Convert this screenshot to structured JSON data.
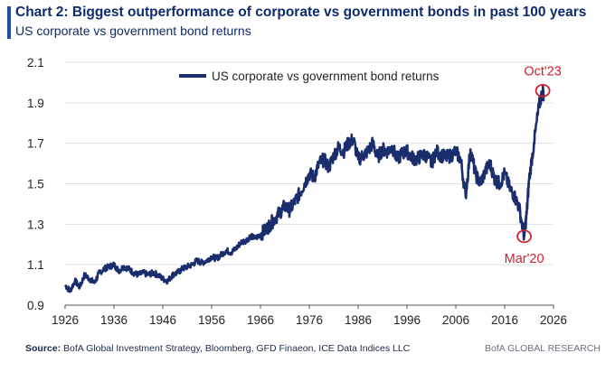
{
  "header": {
    "title": "Chart 2: Biggest outperformance of corporate vs government bonds in past 100 years",
    "subtitle": "US corporate vs government bond returns"
  },
  "footer": {
    "source_label": "Source:",
    "source_text": "BofA Global Investment Strategy, Bloomberg, GFD Finaeon, ICE Data Indices LLC",
    "brand": "BofA GLOBAL RESEARCH"
  },
  "colors": {
    "series": "#1a2e6e",
    "annotation": "#d0202e",
    "grid": "#dde0e6",
    "accent": "#1f4ea3"
  },
  "chart_data": {
    "type": "line",
    "title": "Chart 2: Biggest outperformance of corporate vs government bonds in past 100 years",
    "subtitle": "US corporate vs government bond returns",
    "xlabel": "",
    "ylabel": "",
    "xlim": [
      1926,
      2026
    ],
    "ylim": [
      0.9,
      2.1
    ],
    "x_ticks": [
      1926,
      1936,
      1946,
      1956,
      1966,
      1976,
      1986,
      1996,
      2006,
      2016,
      2026
    ],
    "y_ticks": [
      0.9,
      1.1,
      1.3,
      1.5,
      1.7,
      1.9,
      2.1
    ],
    "y_tick_labels": [
      "0.9",
      "1.1",
      "1.3",
      "1.5",
      "1.7",
      "1.9",
      "2.1"
    ],
    "grid": true,
    "legend": {
      "position": "top-center",
      "entries": [
        "US corporate vs government bond returns"
      ]
    },
    "series": [
      {
        "name": "US corporate vs government bond returns",
        "x": [
          1926,
          1927,
          1928,
          1929,
          1930,
          1931,
          1932,
          1933,
          1934,
          1935,
          1936,
          1937,
          1938,
          1939,
          1940,
          1941,
          1942,
          1943,
          1944,
          1945,
          1946,
          1947,
          1948,
          1949,
          1950,
          1951,
          1952,
          1953,
          1954,
          1955,
          1956,
          1957,
          1958,
          1959,
          1960,
          1961,
          1962,
          1963,
          1964,
          1965,
          1966,
          1967,
          1968,
          1969,
          1970,
          1971,
          1972,
          1973,
          1974,
          1975,
          1976,
          1977,
          1978,
          1979,
          1980,
          1981,
          1982,
          1983,
          1984,
          1985,
          1986,
          1987,
          1988,
          1989,
          1990,
          1991,
          1992,
          1993,
          1994,
          1995,
          1996,
          1997,
          1998,
          1999,
          2000,
          2001,
          2002,
          2003,
          2004,
          2005,
          2006,
          2007,
          2008,
          2009,
          2010,
          2011,
          2012,
          2013,
          2014,
          2015,
          2016,
          2017,
          2018,
          2019,
          2020,
          2020.5,
          2021,
          2022,
          2023,
          2023.8,
          2024
        ],
        "y": [
          1.0,
          0.97,
          1.02,
          0.99,
          1.05,
          1.03,
          1.01,
          1.06,
          1.08,
          1.09,
          1.1,
          1.07,
          1.09,
          1.08,
          1.06,
          1.05,
          1.06,
          1.05,
          1.06,
          1.05,
          1.03,
          1.02,
          1.05,
          1.06,
          1.08,
          1.09,
          1.1,
          1.12,
          1.11,
          1.12,
          1.14,
          1.13,
          1.15,
          1.17,
          1.16,
          1.18,
          1.21,
          1.22,
          1.24,
          1.23,
          1.25,
          1.27,
          1.3,
          1.33,
          1.36,
          1.39,
          1.37,
          1.41,
          1.45,
          1.5,
          1.55,
          1.53,
          1.6,
          1.62,
          1.58,
          1.64,
          1.68,
          1.66,
          1.7,
          1.72,
          1.62,
          1.64,
          1.66,
          1.7,
          1.63,
          1.67,
          1.66,
          1.68,
          1.62,
          1.65,
          1.66,
          1.63,
          1.62,
          1.64,
          1.64,
          1.6,
          1.66,
          1.64,
          1.63,
          1.64,
          1.66,
          1.62,
          1.44,
          1.67,
          1.55,
          1.5,
          1.56,
          1.6,
          1.52,
          1.5,
          1.55,
          1.48,
          1.44,
          1.38,
          1.24,
          1.35,
          1.52,
          1.7,
          1.88,
          1.96,
          1.93
        ]
      }
    ],
    "annotations": [
      {
        "label": "Oct'23",
        "x": 2023.8,
        "y": 1.96,
        "position": "above"
      },
      {
        "label": "Mar'20",
        "x": 2020,
        "y": 1.24,
        "position": "below"
      }
    ]
  }
}
